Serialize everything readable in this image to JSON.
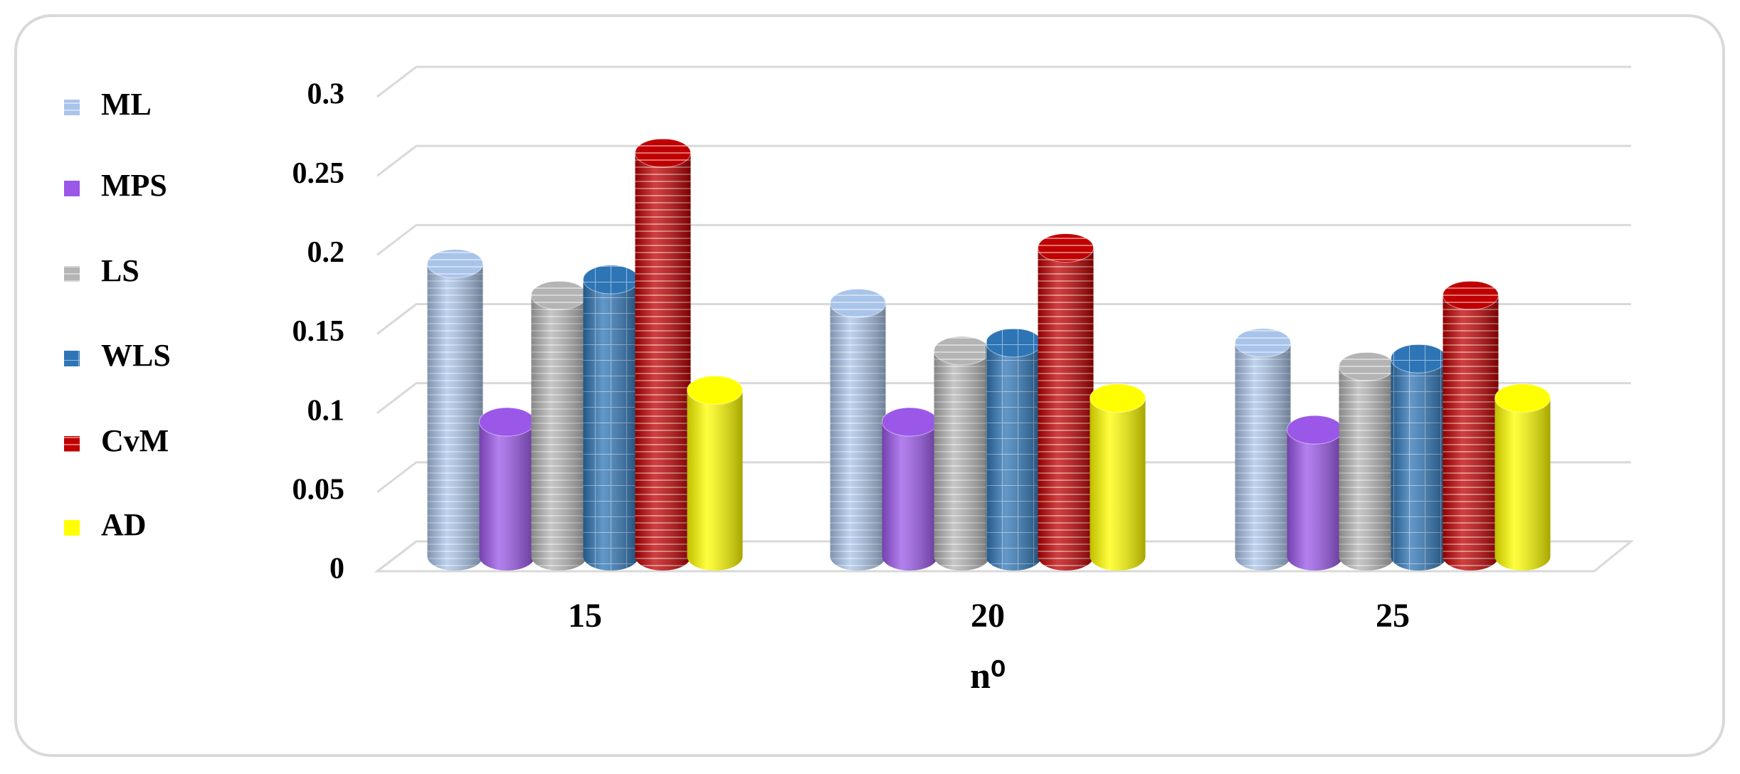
{
  "chart_data": {
    "type": "bar3d",
    "x_label": "n⁰",
    "categories": [
      "15",
      "20",
      "25"
    ],
    "series": [
      {
        "name": "ML",
        "color": "#a9c4ea",
        "values": [
          0.185,
          0.16,
          0.135
        ]
      },
      {
        "name": "MPS",
        "color": "#9a57e8",
        "values": [
          0.085,
          0.085,
          0.08
        ]
      },
      {
        "name": "LS",
        "color": "#b4b4b4",
        "values": [
          0.165,
          0.13,
          0.12
        ]
      },
      {
        "name": "WLS",
        "color": "#2e75b6",
        "values": [
          0.175,
          0.135,
          0.125
        ]
      },
      {
        "name": "CvM",
        "color": "#c00000",
        "values": [
          0.255,
          0.195,
          0.165
        ]
      },
      {
        "name": "AD",
        "color": "#ffff00",
        "values": [
          0.105,
          0.1,
          0.1
        ]
      }
    ],
    "ylim": [
      0,
      0.3
    ],
    "yticks": [
      0,
      0.05,
      0.1,
      0.15,
      0.2,
      0.25,
      0.3
    ],
    "grid": true,
    "legend": "left"
  }
}
